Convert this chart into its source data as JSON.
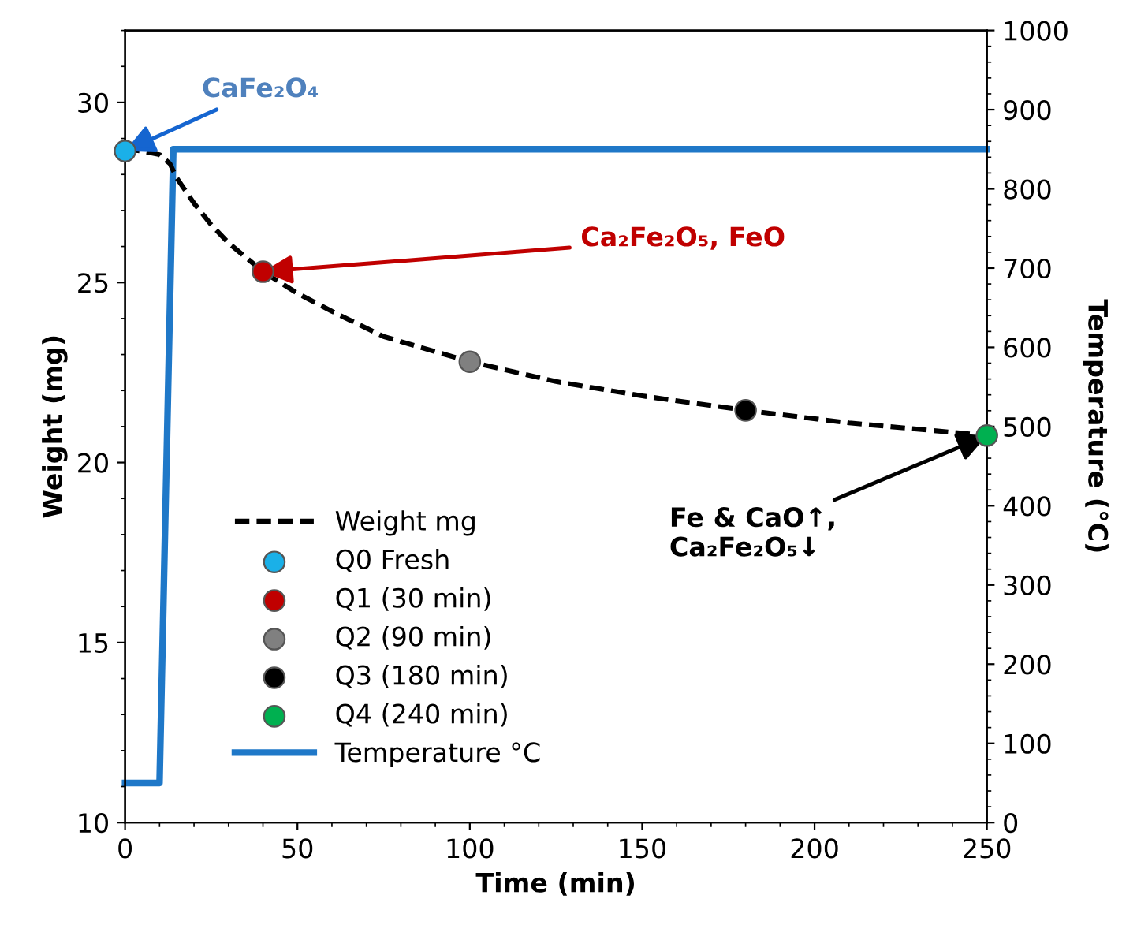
{
  "chart_data": {
    "type": "line",
    "xlabel": "Time (min)",
    "ylabel": "Weight (mg)",
    "y2label": "Temperature (°C)",
    "xlim": [
      0,
      250
    ],
    "xticks": [
      0,
      50,
      100,
      150,
      200,
      250
    ],
    "ylim": [
      10,
      32
    ],
    "yticks": [
      10,
      15,
      20,
      25,
      30
    ],
    "y2lim": [
      0,
      1000
    ],
    "y2ticks": [
      0,
      100,
      200,
      300,
      400,
      500,
      600,
      700,
      800,
      900,
      1000
    ],
    "grid": false,
    "legend": "bottom left",
    "series": [
      {
        "name": "Weight mg",
        "line_style": "dashed",
        "color": "#000000",
        "x": [
          0,
          5,
          10,
          13,
          15,
          20,
          25,
          30,
          40,
          50,
          60,
          75,
          100,
          125,
          150,
          180,
          210,
          250
        ],
        "values": [
          28.7,
          28.65,
          28.55,
          28.3,
          27.9,
          27.2,
          26.6,
          26.1,
          25.3,
          24.7,
          24.2,
          23.5,
          22.8,
          22.25,
          21.85,
          21.45,
          21.1,
          20.75
        ]
      },
      {
        "name": "Q0 Fresh",
        "type": "scatter",
        "marker": "circle",
        "color": "#1ab0e8",
        "x": [
          0
        ],
        "values": [
          28.65
        ]
      },
      {
        "name": "Q1 (30 min)",
        "type": "scatter",
        "marker": "circle",
        "color": "#c00000",
        "x": [
          40
        ],
        "values": [
          25.3
        ]
      },
      {
        "name": "Q2 (90 min)",
        "type": "scatter",
        "marker": "circle",
        "color": "#808080",
        "x": [
          100
        ],
        "values": [
          22.8
        ]
      },
      {
        "name": "Q3 (180 min)",
        "type": "scatter",
        "marker": "circle",
        "color": "#000000",
        "x": [
          180
        ],
        "values": [
          21.45
        ]
      },
      {
        "name": "Q4 (240 min)",
        "type": "scatter",
        "marker": "circle",
        "color": "#00b050",
        "x": [
          250
        ],
        "values": [
          20.75
        ]
      },
      {
        "name": "Temperature °C",
        "line_style": "solid",
        "axis": "y2",
        "color": "#1f78c8",
        "x": [
          0,
          10,
          14,
          250
        ],
        "values": [
          50,
          50,
          850,
          850
        ]
      }
    ],
    "annotations": [
      {
        "text": "CaFe₂O₄",
        "x": 0,
        "y": 28.65
      },
      {
        "text": "Ca₂Fe₂O₅, FeO",
        "x": 40,
        "y": 25.3
      },
      {
        "text": "Fe & CaO↑,\nCa₂Fe₂O₅↓",
        "x": 250,
        "y": 20.75
      }
    ]
  }
}
